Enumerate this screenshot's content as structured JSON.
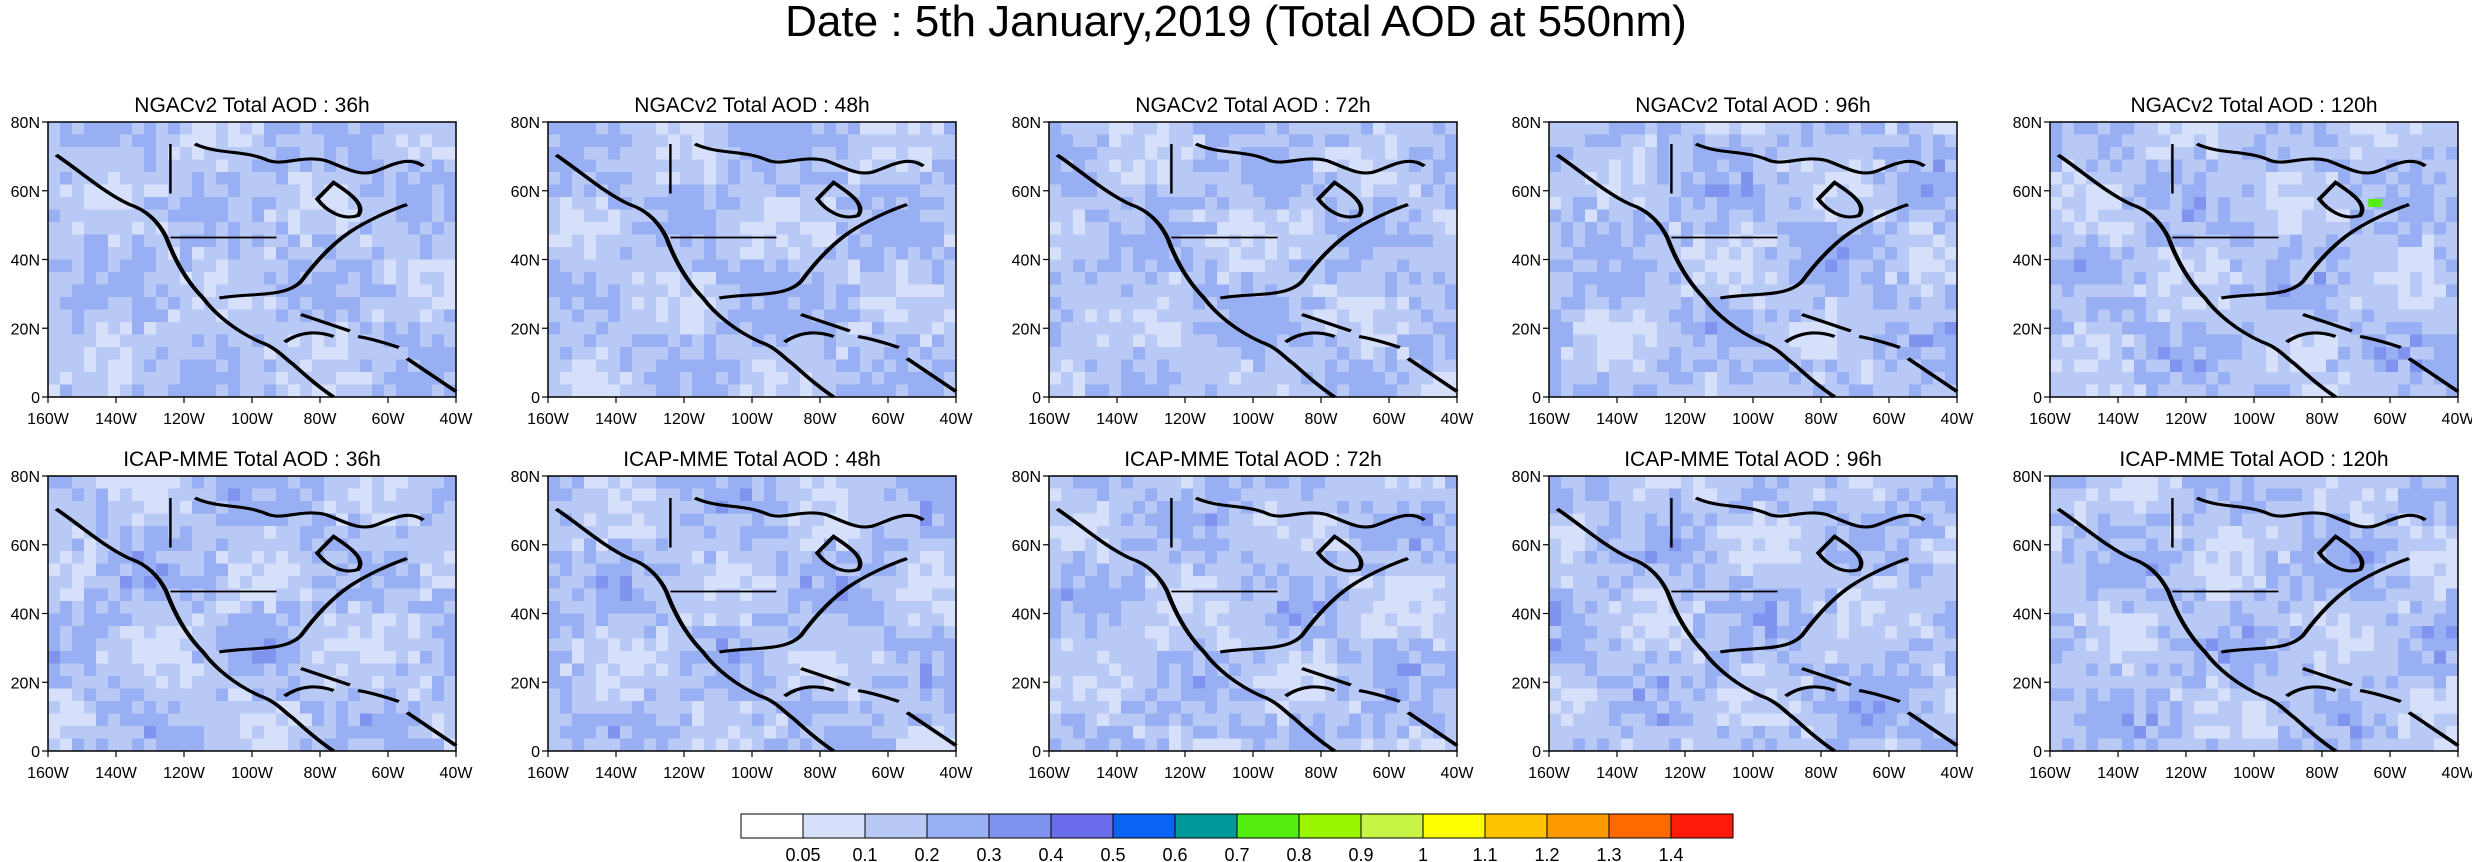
{
  "page_title": "Date : 5th January,2019 (Total AOD at 550nm)",
  "panels": [
    {
      "title": "NGACv2 Total AOD : 36h",
      "max_band": 3
    },
    {
      "title": "NGACv2 Total AOD : 48h",
      "max_band": 3
    },
    {
      "title": "NGACv2 Total AOD : 72h",
      "max_band": 3
    },
    {
      "title": "NGACv2 Total AOD : 96h",
      "max_band": 4
    },
    {
      "title": "NGACv2 Total AOD : 120h",
      "max_band": 8
    },
    {
      "title": "ICAP-MME Total AOD : 36h",
      "max_band": 4
    },
    {
      "title": "ICAP-MME Total AOD : 48h",
      "max_band": 4
    },
    {
      "title": "ICAP-MME Total AOD : 72h",
      "max_band": 4
    },
    {
      "title": "ICAP-MME Total AOD : 96h",
      "max_band": 4
    },
    {
      "title": "ICAP-MME Total AOD : 120h",
      "max_band": 4
    }
  ],
  "y_ticks": [
    "0",
    "20N",
    "40N",
    "60N",
    "80N"
  ],
  "x_ticks": [
    "160W",
    "140W",
    "120W",
    "100W",
    "80W",
    "60W",
    "40W"
  ],
  "colorbar": {
    "labels": [
      "0.05",
      "0.1",
      "0.2",
      "0.3",
      "0.4",
      "0.5",
      "0.6",
      "0.7",
      "0.8",
      "0.9",
      "1",
      "1.1",
      "1.2",
      "1.3",
      "1.4"
    ],
    "colors": [
      "#ffffff",
      "#d6e0fa",
      "#b9c9f6",
      "#98b0f3",
      "#7f93ef",
      "#6a6cec",
      "#0a63f5",
      "#009999",
      "#55ee11",
      "#99f500",
      "#c8f545",
      "#ffff00",
      "#ffc200",
      "#ff9900",
      "#ff6900",
      "#ff1a0a"
    ]
  },
  "chart_data": {
    "type": "heatmap",
    "title": "Date : 5th January,2019 (Total AOD at 550nm)",
    "domain": {
      "lon": [
        -160,
        -40
      ],
      "lat": [
        0,
        80
      ]
    },
    "variable": "Total AOD at 550nm",
    "legend": "bottom",
    "levels": [
      0.05,
      0.1,
      0.2,
      0.3,
      0.4,
      0.5,
      0.6,
      0.7,
      0.8,
      0.9,
      1,
      1.1,
      1.2,
      1.3,
      1.4
    ]
  }
}
